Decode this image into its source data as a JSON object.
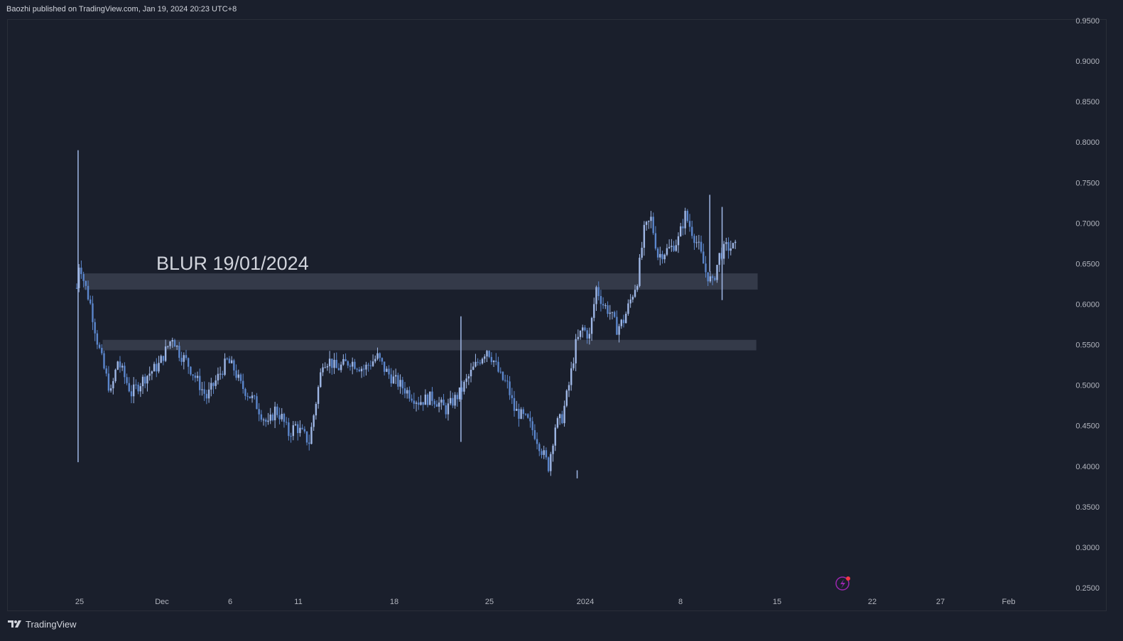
{
  "header": {
    "published_text": "Baozhi published on TradingView.com, Jan 19, 2024 20:23 UTC+8"
  },
  "footer": {
    "brand": "TradingView"
  },
  "colors": {
    "background": "#1a1f2c",
    "candle_up": "#9fb7e6",
    "candle_down": "#5b86cc",
    "zone": "#3a3f4f",
    "text": "#d1d4dc"
  },
  "chart_data": {
    "type": "candlestick",
    "title": "",
    "annotation": "BLUR 19/01/2024",
    "y_axis": {
      "ticks": [
        "0.9500",
        "0.9000",
        "0.8500",
        "0.8000",
        "0.7500",
        "0.7000",
        "0.6500",
        "0.6000",
        "0.5500",
        "0.5000",
        "0.4500",
        "0.4000",
        "0.3500",
        "0.3000",
        "0.2500"
      ],
      "range": [
        0.25,
        0.95
      ],
      "position": "right"
    },
    "x_axis": {
      "ticks": [
        "25",
        "Dec",
        "6",
        "11",
        "18",
        "25",
        "2024",
        "8",
        "15",
        "22",
        "27",
        "Feb"
      ],
      "range_days": [
        0,
        70
      ]
    },
    "zones": [
      {
        "from_day": 0.5,
        "to_day": 49.8,
        "low": 0.618,
        "high": 0.638
      },
      {
        "from_day": 1.9,
        "to_day": 49.7,
        "low": 0.543,
        "high": 0.556
      }
    ],
    "price_path_days": [
      0,
      0.2,
      0.5,
      1.0,
      1.5,
      2.0,
      2.5,
      3.0,
      3.5,
      4.0,
      4.5,
      5.0,
      6.0,
      7.0,
      7.5,
      8.0,
      8.5,
      9.0,
      9.5,
      10.0,
      10.5,
      11.0,
      11.5,
      12.0,
      13.0,
      14.0,
      14.5,
      15.0,
      15.5,
      16.0,
      17.0,
      17.5,
      18.0,
      18.5,
      19.0,
      20.0,
      21.0,
      22.0,
      22.5,
      23.0,
      24.0,
      25.0,
      26.0,
      27.0,
      28.0,
      29.0,
      30.0,
      30.5,
      31.0,
      31.5,
      32.0,
      33.0,
      33.5,
      34.0,
      34.5,
      35.0,
      35.5,
      36.0,
      36.5,
      37.0,
      37.5,
      38.0,
      38.5,
      39.0,
      39.5,
      40.0,
      41.0,
      41.5,
      42.0,
      42.5,
      43.0,
      43.5,
      44.0,
      44.5,
      45.0,
      45.5,
      46.0,
      46.5,
      47.0,
      47.5,
      48.0,
      48.3
    ],
    "price_path_values": [
      0.62,
      0.655,
      0.63,
      0.6,
      0.555,
      0.52,
      0.49,
      0.53,
      0.51,
      0.49,
      0.5,
      0.51,
      0.525,
      0.56,
      0.54,
      0.53,
      0.515,
      0.5,
      0.485,
      0.5,
      0.515,
      0.53,
      0.52,
      0.5,
      0.48,
      0.45,
      0.47,
      0.46,
      0.44,
      0.45,
      0.43,
      0.48,
      0.53,
      0.53,
      0.52,
      0.53,
      0.52,
      0.535,
      0.52,
      0.51,
      0.495,
      0.48,
      0.485,
      0.47,
      0.49,
      0.52,
      0.545,
      0.53,
      0.51,
      0.5,
      0.47,
      0.455,
      0.44,
      0.42,
      0.4,
      0.45,
      0.46,
      0.5,
      0.55,
      0.57,
      0.56,
      0.62,
      0.6,
      0.59,
      0.57,
      0.58,
      0.63,
      0.69,
      0.705,
      0.66,
      0.665,
      0.67,
      0.68,
      0.71,
      0.69,
      0.67,
      0.64,
      0.625,
      0.66,
      0.67,
      0.67,
      0.67
    ],
    "spikes": [
      {
        "day": 0.1,
        "high": 0.79,
        "low": 0.405
      },
      {
        "day": 28.1,
        "high": 0.585,
        "low": 0.43
      },
      {
        "day": 36.6,
        "high": 0.395,
        "low": 0.385
      },
      {
        "day": 46.3,
        "high": 0.735,
        "low": 0.64
      },
      {
        "day": 47.2,
        "high": 0.72,
        "low": 0.605
      }
    ]
  }
}
